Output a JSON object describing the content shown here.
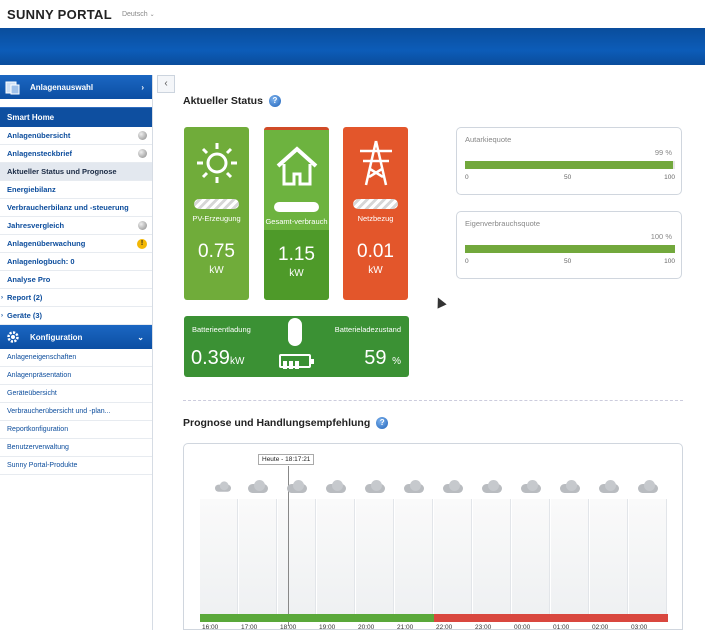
{
  "header": {
    "logo": "SUNNY PORTAL",
    "language": "Deutsch"
  },
  "sidebar": {
    "plant_select": "Anlagenauswahl",
    "smart_home": "Smart Home",
    "items": [
      {
        "label": "Anlagenübersicht",
        "icon": "globe-icon"
      },
      {
        "label": "Anlagensteckbrief",
        "icon": "globe-icon"
      },
      {
        "label": "Aktueller Status und Prognose",
        "active": true
      },
      {
        "label": "Energiebilanz"
      },
      {
        "label": "Verbraucherbilanz und -steuerung"
      },
      {
        "label": "Jahresvergleich",
        "icon": "globe-icon"
      },
      {
        "label": "Anlagenüberwachung",
        "icon": "warning-icon",
        "icon_text": "!"
      },
      {
        "label": "Anlagenlogbuch: 0"
      },
      {
        "label": "Analyse Pro"
      },
      {
        "label": "Report (2)",
        "expandable": true
      },
      {
        "label": "Geräte (3)",
        "expandable": true
      }
    ],
    "config_title": "Konfiguration",
    "config_items": [
      "Anlageneigenschaften",
      "Anlagenpräsentation",
      "Geräteübersicht",
      "Verbraucherübersicht und -plan...",
      "Reportkonfiguration",
      "Benutzerverwaltung",
      "Sunny Portal-Produkte"
    ]
  },
  "status": {
    "title": "Aktueller Status",
    "pv": {
      "label": "PV-Erzeugung",
      "value": "0.75",
      "unit": "kW"
    },
    "consumption": {
      "label": "Gesamt-verbrauch",
      "value": "1.15",
      "unit": "kW"
    },
    "grid": {
      "label": "Netzbezug",
      "value": "0.01",
      "unit": "kW"
    },
    "battery": {
      "discharge_label": "Batterieentladung",
      "discharge_value": "0.39",
      "discharge_unit": "kW",
      "charge_label": "Batterieladezustand",
      "charge_value": "59",
      "charge_unit": "%"
    },
    "autarky": {
      "title": "Autarkiequote",
      "value_label": "99 %",
      "value": 0.99,
      "ticks": [
        "0",
        "50",
        "100"
      ]
    },
    "self_consumption": {
      "title": "Eigenverbrauchsquote",
      "value_label": "100 %",
      "value": 1.0,
      "ticks": [
        "0",
        "50",
        "100"
      ]
    }
  },
  "forecast": {
    "title": "Prognose und Handlungsempfehlung",
    "now_label": "Heute - 18:17:21",
    "hours": [
      "16:00",
      "17:00",
      "18:00",
      "19:00",
      "20:00",
      "21:00",
      "22:00",
      "23:00",
      "00:00",
      "01:00",
      "02:00",
      "03:00"
    ],
    "segment_colors": [
      "#5aa83a",
      "#5aa83a",
      "#5aa83a",
      "#5aa83a",
      "#5aa83a",
      "#5aa83a",
      "#d9473f",
      "#d9473f",
      "#d9473f",
      "#d9473f",
      "#d9473f",
      "#d9473f"
    ]
  }
}
